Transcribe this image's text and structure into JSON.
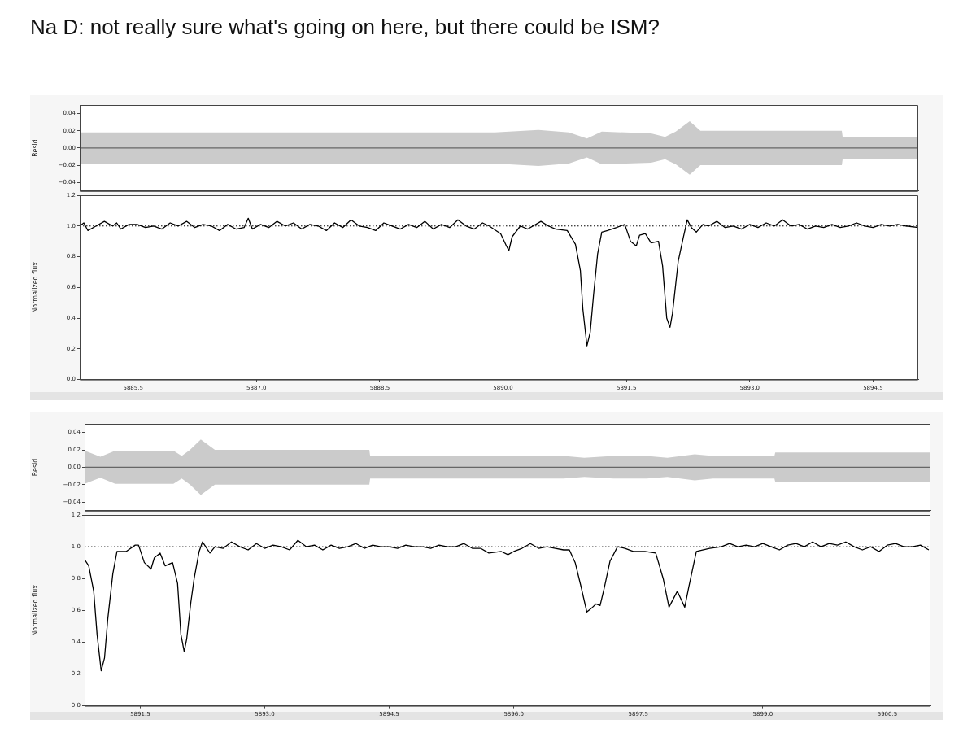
{
  "chart_data": [
    {
      "type": "line",
      "title": "Na D: not really sure what's going on here, but there could be ISM?",
      "ylabel": "Resid",
      "marker": "none",
      "line_style": "solid",
      "tick_labels": "y",
      "xlim": [
        5884.85,
        5895.05
      ],
      "ylim": [
        -0.05,
        0.05
      ],
      "yticks": [
        {
          "value": -0.04,
          "label": "−0.04"
        },
        {
          "value": -0.02,
          "label": "−0.02"
        },
        {
          "value": 0,
          "label": "0.00"
        },
        0.02,
        0.04
      ],
      "ref_lines": [
        {
          "axis": "x",
          "value": 5889.95,
          "line_style": "dotted",
          "color": "#555555"
        }
      ],
      "series": [
        {
          "color": "#666666",
          "x": [
            5884.85,
            5889.9,
            5890.43,
            5890.8,
            5891.02,
            5891.2,
            5891.8,
            5891.97,
            5892.1,
            5892.27,
            5892.4,
            5894.12,
            5894.13,
            5895.05
          ],
          "values": [
            0,
            0,
            0,
            0,
            0,
            0,
            0,
            0,
            0,
            0,
            0,
            0,
            0,
            0
          ],
          "upper": [
            0.018,
            0.018,
            0.021,
            0.018,
            0.011,
            0.019,
            0.017,
            0.013,
            0.019,
            0.031,
            0.02,
            0.02,
            0.013,
            0.013
          ],
          "lower": [
            -0.018,
            -0.018,
            -0.021,
            -0.018,
            -0.011,
            -0.019,
            -0.017,
            -0.013,
            -0.019,
            -0.031,
            -0.02,
            -0.02,
            -0.013,
            -0.013
          ]
        }
      ]
    },
    {
      "type": "line",
      "ylabel": "Normalized flux",
      "marker": "none",
      "line_style": "solid",
      "xlim": [
        5884.85,
        5895.05
      ],
      "xticks": [
        5885.5,
        {
          "value": 5887,
          "label": "5887.0"
        },
        5888.5,
        {
          "value": 5890,
          "label": "5890.0"
        },
        5891.5,
        {
          "value": 5893,
          "label": "5893.0"
        },
        5894.5
      ],
      "ylim": [
        0,
        1.2
      ],
      "yticks": [
        {
          "value": 0,
          "label": "0.0"
        },
        0.2,
        0.4,
        0.6,
        0.8,
        {
          "value": 1,
          "label": "1.0"
        },
        1.2
      ],
      "ref_lines": [
        {
          "axis": "x",
          "value": 5889.95,
          "line_style": "dotted",
          "color": "#555555"
        },
        {
          "axis": "y",
          "value": 1,
          "line_style": "dotted",
          "color": "#000000"
        }
      ],
      "series": [
        {
          "color": "#000000",
          "x": [
            5884.85,
            5884.9,
            5884.95,
            5885.05,
            5885.15,
            5885.25,
            5885.3,
            5885.35,
            5885.45,
            5885.55,
            5885.65,
            5885.75,
            5885.85,
            5885.95,
            5886.05,
            5886.15,
            5886.25,
            5886.35,
            5886.45,
            5886.55,
            5886.65,
            5886.75,
            5886.85,
            5886.9,
            5886.95,
            5887.05,
            5887.15,
            5887.25,
            5887.35,
            5887.45,
            5887.55,
            5887.65,
            5887.75,
            5887.85,
            5887.95,
            5888.05,
            5888.15,
            5888.25,
            5888.35,
            5888.45,
            5888.55,
            5888.65,
            5888.75,
            5888.85,
            5888.95,
            5889.05,
            5889.15,
            5889.25,
            5889.35,
            5889.45,
            5889.55,
            5889.65,
            5889.75,
            5889.83,
            5889.97,
            5890.04,
            5890.07,
            5890.11,
            5890.21,
            5890.3,
            5890.46,
            5890.55,
            5890.64,
            5890.78,
            5890.88,
            5890.94,
            5890.97,
            5891.02,
            5891.06,
            5891.1,
            5891.15,
            5891.2,
            5891.27,
            5891.38,
            5891.48,
            5891.55,
            5891.62,
            5891.66,
            5891.73,
            5891.8,
            5891.89,
            5891.94,
            5891.99,
            5892.03,
            5892.06,
            5892.13,
            5892.19,
            5892.24,
            5892.29,
            5892.35,
            5892.43,
            5892.5,
            5892.6,
            5892.7,
            5892.8,
            5892.9,
            5893.0,
            5893.1,
            5893.2,
            5893.3,
            5893.4,
            5893.5,
            5893.6,
            5893.7,
            5893.8,
            5893.9,
            5894.0,
            5894.1,
            5894.2,
            5894.3,
            5894.4,
            5894.5,
            5894.6,
            5894.7,
            5894.8,
            5894.9,
            5895.05
          ],
          "values": [
            1.0,
            1.02,
            0.97,
            1.0,
            1.03,
            1.0,
            1.02,
            0.98,
            1.01,
            1.01,
            0.99,
            1.0,
            0.98,
            1.02,
            1.0,
            1.03,
            0.99,
            1.01,
            1.0,
            0.97,
            1.01,
            0.98,
            0.99,
            1.05,
            0.98,
            1.01,
            0.99,
            1.03,
            1.0,
            1.02,
            0.98,
            1.01,
            1.0,
            0.97,
            1.02,
            0.99,
            1.04,
            1.0,
            0.99,
            0.97,
            1.02,
            1.0,
            0.98,
            1.01,
            0.99,
            1.03,
            0.98,
            1.01,
            0.99,
            1.04,
            1.0,
            0.98,
            1.02,
            1.0,
            0.95,
            0.87,
            0.84,
            0.93,
            1.0,
            0.98,
            1.03,
            1.0,
            0.98,
            0.97,
            0.88,
            0.71,
            0.46,
            0.22,
            0.31,
            0.55,
            0.82,
            0.96,
            0.97,
            0.99,
            1.01,
            0.9,
            0.87,
            0.94,
            0.95,
            0.89,
            0.9,
            0.74,
            0.4,
            0.34,
            0.43,
            0.77,
            0.92,
            1.04,
            0.99,
            0.96,
            1.01,
            1.0,
            1.03,
            0.99,
            1.0,
            0.98,
            1.01,
            0.99,
            1.02,
            1.0,
            1.04,
            1.0,
            1.01,
            0.98,
            1.0,
            0.99,
            1.01,
            0.99,
            1.0,
            1.02,
            1.0,
            0.99,
            1.01,
            1.0,
            1.01,
            1.0,
            0.99
          ]
        }
      ]
    },
    {
      "type": "line",
      "ylabel": "Resid",
      "marker": "none",
      "line_style": "solid",
      "tick_labels": "y",
      "xlim": [
        5890.83,
        5901.02
      ],
      "ylim": [
        -0.05,
        0.05
      ],
      "yticks": [
        {
          "value": -0.04,
          "label": "−0.04"
        },
        {
          "value": -0.02,
          "label": "−0.02"
        },
        {
          "value": 0,
          "label": "0.00"
        },
        0.02,
        0.04
      ],
      "ref_lines": [
        {
          "axis": "x",
          "value": 5895.93,
          "line_style": "dotted",
          "color": "#555555"
        }
      ],
      "series": [
        {
          "color": "#666666",
          "x": [
            5890.83,
            5891.02,
            5891.2,
            5891.9,
            5892.0,
            5892.1,
            5892.23,
            5892.4,
            5894.26,
            5894.27,
            5896.6,
            5896.85,
            5897.2,
            5897.6,
            5897.85,
            5898.18,
            5898.4,
            5899.14,
            5899.15,
            5901.02
          ],
          "values": [
            0,
            0,
            0,
            0,
            0,
            0,
            0,
            0,
            0,
            0,
            0,
            0,
            0,
            0,
            0,
            0,
            0,
            0,
            0,
            0
          ],
          "upper": [
            0.019,
            0.012,
            0.019,
            0.019,
            0.013,
            0.02,
            0.032,
            0.02,
            0.02,
            0.013,
            0.013,
            0.011,
            0.013,
            0.013,
            0.011,
            0.015,
            0.013,
            0.013,
            0.017,
            0.017
          ],
          "lower": [
            -0.019,
            -0.012,
            -0.019,
            -0.019,
            -0.013,
            -0.02,
            -0.032,
            -0.02,
            -0.02,
            -0.013,
            -0.013,
            -0.011,
            -0.013,
            -0.013,
            -0.011,
            -0.015,
            -0.013,
            -0.013,
            -0.017,
            -0.017
          ]
        }
      ]
    },
    {
      "type": "line",
      "ylabel": "Normalized flux",
      "marker": "none",
      "line_style": "solid",
      "xlim": [
        5890.83,
        5901.02
      ],
      "xticks": [
        5891.5,
        {
          "value": 5893,
          "label": "5893.0"
        },
        5894.5,
        {
          "value": 5896,
          "label": "5896.0"
        },
        5897.5,
        {
          "value": 5899,
          "label": "5899.0"
        },
        5900.5
      ],
      "ylim": [
        0,
        1.2
      ],
      "yticks": [
        {
          "value": 0,
          "label": "0.0"
        },
        0.2,
        0.4,
        0.6,
        0.8,
        {
          "value": 1,
          "label": "1.0"
        },
        1.2
      ],
      "ref_lines": [
        {
          "axis": "x",
          "value": 5895.93,
          "line_style": "dotted",
          "color": "#555555"
        },
        {
          "axis": "y",
          "value": 1,
          "line_style": "dotted",
          "color": "#000000"
        }
      ],
      "series": [
        {
          "color": "#000000",
          "x": [
            5890.83,
            5890.88,
            5890.94,
            5890.98,
            5891.03,
            5891.07,
            5891.11,
            5891.17,
            5891.22,
            5891.33,
            5891.44,
            5891.48,
            5891.55,
            5891.63,
            5891.67,
            5891.74,
            5891.8,
            5891.89,
            5891.95,
            5891.99,
            5892.03,
            5892.06,
            5892.11,
            5892.15,
            5892.21,
            5892.25,
            5892.34,
            5892.4,
            5892.5,
            5892.6,
            5892.7,
            5892.8,
            5892.9,
            5893.0,
            5893.1,
            5893.2,
            5893.3,
            5893.4,
            5893.5,
            5893.6,
            5893.7,
            5893.8,
            5893.9,
            5894.0,
            5894.1,
            5894.2,
            5894.3,
            5894.4,
            5894.5,
            5894.6,
            5894.7,
            5894.8,
            5894.9,
            5895.0,
            5895.1,
            5895.2,
            5895.3,
            5895.4,
            5895.5,
            5895.6,
            5895.7,
            5895.85,
            5895.93,
            5896.0,
            5896.1,
            5896.2,
            5896.3,
            5896.4,
            5896.5,
            5896.6,
            5896.67,
            5896.74,
            5896.81,
            5896.88,
            5896.95,
            5896.99,
            5897.04,
            5897.09,
            5897.16,
            5897.25,
            5897.34,
            5897.44,
            5897.58,
            5897.71,
            5897.8,
            5897.87,
            5897.97,
            5898.06,
            5898.11,
            5898.2,
            5898.36,
            5898.5,
            5898.6,
            5898.7,
            5898.8,
            5898.9,
            5899.0,
            5899.1,
            5899.2,
            5899.3,
            5899.4,
            5899.5,
            5899.6,
            5899.7,
            5899.8,
            5899.9,
            5900.0,
            5900.1,
            5900.2,
            5900.3,
            5900.4,
            5900.5,
            5900.6,
            5900.7,
            5900.8,
            5900.9,
            5901.0
          ],
          "values": [
            0.92,
            0.88,
            0.72,
            0.45,
            0.22,
            0.3,
            0.55,
            0.83,
            0.97,
            0.97,
            1.01,
            1.01,
            0.9,
            0.86,
            0.93,
            0.96,
            0.88,
            0.9,
            0.77,
            0.45,
            0.34,
            0.42,
            0.65,
            0.8,
            0.97,
            1.03,
            0.96,
            1.0,
            0.99,
            1.03,
            1.0,
            0.98,
            1.02,
            0.99,
            1.01,
            1.0,
            0.98,
            1.04,
            1.0,
            1.01,
            0.98,
            1.01,
            0.99,
            1.0,
            1.02,
            0.99,
            1.01,
            1.0,
            1.0,
            0.99,
            1.01,
            1.0,
            1.0,
            0.99,
            1.01,
            1.0,
            1.0,
            1.02,
            0.99,
            0.99,
            0.96,
            0.97,
            0.95,
            0.97,
            0.99,
            1.02,
            0.99,
            1.0,
            0.99,
            0.98,
            0.98,
            0.9,
            0.75,
            0.59,
            0.62,
            0.64,
            0.63,
            0.74,
            0.91,
            1.0,
            0.99,
            0.97,
            0.97,
            0.96,
            0.8,
            0.62,
            0.72,
            0.62,
            0.75,
            0.97,
            0.99,
            1.0,
            1.02,
            1.0,
            1.01,
            1.0,
            1.02,
            1.0,
            0.98,
            1.01,
            1.02,
            1.0,
            1.03,
            1.0,
            1.02,
            1.01,
            1.03,
            1.0,
            0.98,
            1.0,
            0.97,
            1.01,
            1.02,
            1.0,
            1.0,
            1.01,
            0.98
          ]
        }
      ]
    }
  ]
}
